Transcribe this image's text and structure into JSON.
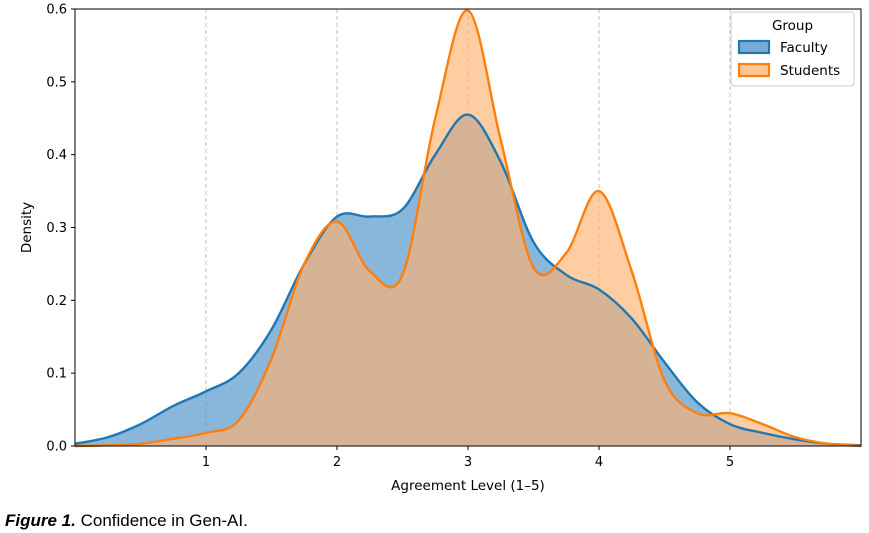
{
  "chart_data": {
    "type": "area",
    "xlabel": "Agreement Level (1–5)",
    "ylabel": "Density",
    "xlim": [
      0,
      6
    ],
    "ylim": [
      0,
      0.6
    ],
    "xticks": [
      1,
      2,
      3,
      4,
      5
    ],
    "yticks": [
      0.0,
      0.1,
      0.2,
      0.3,
      0.4,
      0.5,
      0.6
    ],
    "grid": "vertical dashed",
    "legend": {
      "title": "Group",
      "placement": "top-right"
    },
    "series": [
      {
        "name": "Faculty",
        "color": "#1f77b4",
        "fill": "#4a8fc8",
        "x": [
          0,
          0.25,
          0.5,
          0.75,
          1,
          1.25,
          1.5,
          1.75,
          2,
          2.25,
          2.5,
          2.75,
          3,
          3.25,
          3.5,
          3.75,
          4,
          4.25,
          4.5,
          4.75,
          5,
          5.25,
          5.5,
          5.75,
          6
        ],
        "y": [
          0.003,
          0.012,
          0.03,
          0.055,
          0.075,
          0.1,
          0.16,
          0.25,
          0.315,
          0.315,
          0.325,
          0.4,
          0.455,
          0.39,
          0.28,
          0.235,
          0.215,
          0.175,
          0.115,
          0.06,
          0.03,
          0.018,
          0.009,
          0.003,
          0.001
        ]
      },
      {
        "name": "Students",
        "color": "#ff7f0e",
        "fill": "#ffb26e",
        "x": [
          0,
          0.25,
          0.5,
          0.75,
          1,
          1.25,
          1.5,
          1.75,
          2,
          2.25,
          2.5,
          2.75,
          3,
          3.25,
          3.5,
          3.75,
          4,
          4.25,
          4.5,
          4.75,
          5,
          5.25,
          5.5,
          5.75,
          6
        ],
        "y": [
          0,
          0.001,
          0.003,
          0.01,
          0.018,
          0.035,
          0.12,
          0.25,
          0.308,
          0.24,
          0.235,
          0.45,
          0.598,
          0.42,
          0.245,
          0.265,
          0.35,
          0.24,
          0.09,
          0.045,
          0.045,
          0.03,
          0.012,
          0.003,
          0.0
        ]
      }
    ]
  },
  "caption": {
    "figure_label": "Figure 1.",
    "text": " Confidence in Gen-AI."
  }
}
